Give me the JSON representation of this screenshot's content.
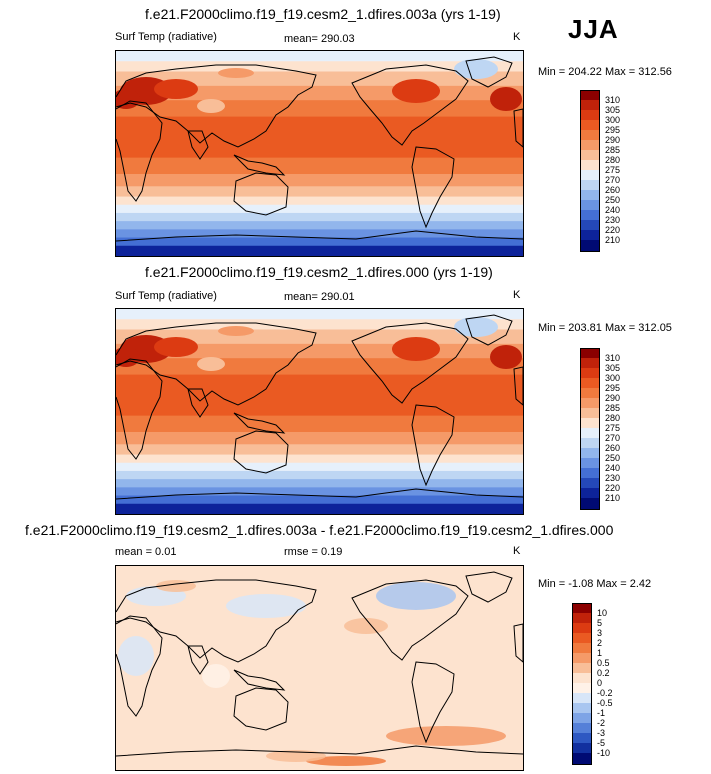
{
  "season": "JJA",
  "panels": [
    {
      "title": "f.e21.F2000climo.f19_f19.cesm2_1.dfires.003a (yrs 1-19)",
      "variable": "Surf Temp (radiative)",
      "stat1": "mean= 290.03",
      "stat2": "",
      "units": "K",
      "minmax": "Min = 204.22 Max = 312.56",
      "levels": [
        "310",
        "305",
        "300",
        "295",
        "290",
        "285",
        "280",
        "275",
        "270",
        "260",
        "250",
        "240",
        "230",
        "220",
        "210"
      ],
      "colors": [
        "#8b0000",
        "#c0220a",
        "#dc3b12",
        "#ea5a22",
        "#f07a3e",
        "#f59a68",
        "#f8be98",
        "#fde3cf",
        "#e6f0fb",
        "#bed6f3",
        "#92b6ec",
        "#6a93e2",
        "#446fd4",
        "#2448b8",
        "#0d239a",
        "#000a73"
      ]
    },
    {
      "title": "f.e21.F2000climo.f19_f19.cesm2_1.dfires.000 (yrs 1-19)",
      "variable": "Surf Temp (radiative)",
      "stat1": "mean= 290.01",
      "stat2": "",
      "units": "K",
      "minmax": "Min = 203.81 Max = 312.05",
      "levels": [
        "310",
        "305",
        "300",
        "295",
        "290",
        "285",
        "280",
        "275",
        "270",
        "260",
        "250",
        "240",
        "230",
        "220",
        "210"
      ],
      "colors": [
        "#8b0000",
        "#c0220a",
        "#dc3b12",
        "#ea5a22",
        "#f07a3e",
        "#f59a68",
        "#f8be98",
        "#fde3cf",
        "#e6f0fb",
        "#bed6f3",
        "#92b6ec",
        "#6a93e2",
        "#446fd4",
        "#2448b8",
        "#0d239a",
        "#000a73"
      ]
    },
    {
      "title": "f.e21.F2000climo.f19_f19.cesm2_1.dfires.003a - f.e21.F2000climo.f19_f19.cesm2_1.dfires.000",
      "variable": "mean =   0.01",
      "stat1": "rmse =   0.19",
      "stat2": "",
      "units": "K",
      "minmax": "Min =  -1.08 Max =   2.42",
      "levels": [
        "10",
        "5",
        "3",
        "2",
        "1",
        "0.5",
        "0.2",
        "0",
        "-0.2",
        "-0.5",
        "-1",
        "-2",
        "-3",
        "-5",
        "-10"
      ],
      "colors": [
        "#8b0000",
        "#c0220a",
        "#dc3b12",
        "#ea5a22",
        "#f07a3e",
        "#f59a68",
        "#f8be98",
        "#fde3cf",
        "#fff2e8",
        "#d8e6f8",
        "#a9c6f0",
        "#7ea4e6",
        "#5580d8",
        "#2e58c2",
        "#12309f",
        "#000a73"
      ]
    }
  ],
  "chart_data": [
    {
      "type": "heatmap",
      "title": "f.e21.F2000climo.f19_f19.cesm2_1.dfires.003a (yrs 1-19)",
      "field": "Surf Temp (radiative)",
      "units": "K",
      "mean": 290.03,
      "min": 204.22,
      "max": 312.56,
      "contour_levels": [
        210,
        220,
        230,
        240,
        250,
        260,
        270,
        275,
        280,
        285,
        290,
        295,
        300,
        305,
        310
      ],
      "season": "JJA"
    },
    {
      "type": "heatmap",
      "title": "f.e21.F2000climo.f19_f19.cesm2_1.dfires.000 (yrs 1-19)",
      "field": "Surf Temp (radiative)",
      "units": "K",
      "mean": 290.01,
      "min": 203.81,
      "max": 312.05,
      "contour_levels": [
        210,
        220,
        230,
        240,
        250,
        260,
        270,
        275,
        280,
        285,
        290,
        295,
        300,
        305,
        310
      ],
      "season": "JJA"
    },
    {
      "type": "heatmap",
      "title": "f.e21.F2000climo.f19_f19.cesm2_1.dfires.003a - f.e21.F2000climo.f19_f19.cesm2_1.dfires.000",
      "units": "K",
      "mean": 0.01,
      "rmse": 0.19,
      "min": -1.08,
      "max": 2.42,
      "contour_levels": [
        -10,
        -5,
        -3,
        -2,
        -1,
        -0.5,
        -0.2,
        0,
        0.2,
        0.5,
        1,
        2,
        3,
        5,
        10
      ],
      "season": "JJA"
    }
  ]
}
